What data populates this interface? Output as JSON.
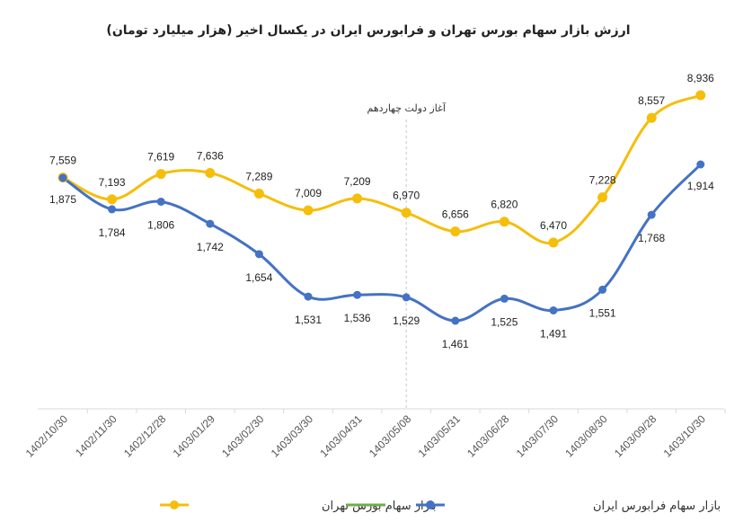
{
  "chart_data": {
    "type": "line",
    "title": "ارزش بازار سهام بورس تهران و فرابورس ایران در یکسال اخیر (هزار میلیارد تومان)",
    "categories": [
      "1402/10/30",
      "1402/11/30",
      "1402/12/28",
      "1403/01/29",
      "1403/02/30",
      "1403/03/30",
      "1403/04/31",
      "1403/05/08",
      "1403/05/31",
      "1403/06/28",
      "1403/07/30",
      "1403/08/30",
      "1403/09/28",
      "1403/10/30"
    ],
    "annotation": {
      "label": "آغاز دولت چهاردهم",
      "category": "1403/05/08"
    },
    "series": [
      {
        "name": "بازار سهام بورس تهران",
        "color": "#F5BE0B",
        "labels": [
          "7,559",
          "7,193",
          "7,619",
          "7,636",
          "7,289",
          "7,009",
          "7,209",
          "6,970",
          "6,656",
          "6,820",
          "6,470",
          "7,228",
          "8,557",
          "8,936"
        ],
        "values": [
          7559,
          7193,
          7619,
          7636,
          7289,
          7009,
          7209,
          6970,
          6656,
          6820,
          6470,
          7228,
          8557,
          8936
        ]
      },
      {
        "name": "بازار سهام فرابورس ایران",
        "color": "#4472C4",
        "labels": [
          "1,875",
          "1,784",
          "1,806",
          "1,742",
          "1,654",
          "1,531",
          "1,536",
          "1,529",
          "1,461",
          "1,525",
          "1,491",
          "1,551",
          "1,768",
          "1,914"
        ],
        "values": [
          1875,
          1784,
          1806,
          1742,
          1654,
          1531,
          1536,
          1529,
          1461,
          1525,
          1491,
          1551,
          1768,
          1914
        ]
      }
    ],
    "extra_legend_color": "#70AD47",
    "grid": false,
    "legend": "bottom"
  }
}
